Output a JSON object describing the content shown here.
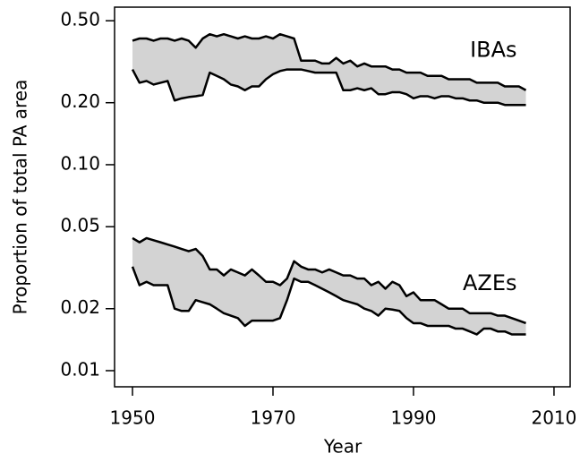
{
  "chart_data": {
    "type": "band",
    "x_label": "Year",
    "y_label": "Proportion of total PA area",
    "log_y": true,
    "xlim": [
      1947.45,
      2012.3
    ],
    "xticks": [
      1950,
      1970,
      1990,
      2010
    ],
    "ylim": [
      0.00835,
      0.582
    ],
    "yticks": [
      {
        "value": 0.5,
        "label": "0.50"
      },
      {
        "value": 0.2,
        "label": "0.20"
      },
      {
        "value": 0.1,
        "label": "0.10"
      },
      0.05,
      0.02,
      0.01
    ],
    "x": [
      1950,
      1951,
      1952,
      1953,
      1954,
      1955,
      1956,
      1957,
      1958,
      1959,
      1960,
      1961,
      1962,
      1963,
      1964,
      1965,
      1966,
      1967,
      1968,
      1969,
      1970,
      1971,
      1972,
      1973,
      1974,
      1975,
      1976,
      1977,
      1978,
      1979,
      1980,
      1981,
      1982,
      1983,
      1984,
      1985,
      1986,
      1987,
      1988,
      1989,
      1990,
      1991,
      1992,
      1993,
      1994,
      1995,
      1996,
      1997,
      1998,
      1999,
      2000,
      2001,
      2002,
      2003,
      2004,
      2005,
      2006
    ],
    "series": [
      {
        "name": "IBAs",
        "color": "#d3d3d3",
        "upper": [
          0.4,
          0.41,
          0.41,
          0.4,
          0.41,
          0.41,
          0.4,
          0.41,
          0.4,
          0.37,
          0.41,
          0.43,
          0.42,
          0.43,
          0.42,
          0.41,
          0.42,
          0.41,
          0.41,
          0.42,
          0.41,
          0.43,
          0.42,
          0.41,
          0.32,
          0.32,
          0.32,
          0.31,
          0.31,
          0.33,
          0.31,
          0.32,
          0.3,
          0.31,
          0.3,
          0.3,
          0.3,
          0.29,
          0.29,
          0.28,
          0.28,
          0.28,
          0.27,
          0.27,
          0.27,
          0.26,
          0.26,
          0.26,
          0.26,
          0.25,
          0.25,
          0.25,
          0.25,
          0.24,
          0.24,
          0.24,
          0.23
        ],
        "lower": [
          0.29,
          0.25,
          0.255,
          0.245,
          0.25,
          0.255,
          0.205,
          0.21,
          0.213,
          0.215,
          0.218,
          0.28,
          0.27,
          0.26,
          0.245,
          0.24,
          0.23,
          0.24,
          0.24,
          0.26,
          0.275,
          0.285,
          0.29,
          0.29,
          0.29,
          0.285,
          0.28,
          0.28,
          0.28,
          0.28,
          0.23,
          0.23,
          0.235,
          0.23,
          0.235,
          0.22,
          0.22,
          0.225,
          0.225,
          0.22,
          0.21,
          0.215,
          0.215,
          0.21,
          0.215,
          0.215,
          0.21,
          0.21,
          0.205,
          0.205,
          0.2,
          0.2,
          0.2,
          0.195,
          0.195,
          0.195,
          0.195
        ]
      },
      {
        "name": "AZEs",
        "color": "#d3d3d3",
        "upper": [
          0.044,
          0.042,
          0.044,
          0.043,
          0.042,
          0.041,
          0.04,
          0.039,
          0.038,
          0.039,
          0.036,
          0.031,
          0.031,
          0.029,
          0.031,
          0.03,
          0.029,
          0.031,
          0.029,
          0.027,
          0.027,
          0.026,
          0.028,
          0.034,
          0.032,
          0.031,
          0.031,
          0.03,
          0.031,
          0.03,
          0.029,
          0.029,
          0.028,
          0.028,
          0.026,
          0.027,
          0.025,
          0.027,
          0.026,
          0.023,
          0.024,
          0.022,
          0.022,
          0.022,
          0.021,
          0.02,
          0.02,
          0.02,
          0.019,
          0.019,
          0.019,
          0.019,
          0.0185,
          0.0185,
          0.018,
          0.0175,
          0.017
        ],
        "lower": [
          0.032,
          0.026,
          0.027,
          0.026,
          0.026,
          0.026,
          0.02,
          0.0195,
          0.0195,
          0.022,
          0.0215,
          0.021,
          0.02,
          0.019,
          0.0185,
          0.018,
          0.0165,
          0.0175,
          0.0175,
          0.0175,
          0.0175,
          0.018,
          0.022,
          0.028,
          0.027,
          0.027,
          0.026,
          0.025,
          0.024,
          0.023,
          0.022,
          0.0215,
          0.021,
          0.02,
          0.0195,
          0.0185,
          0.02,
          0.0198,
          0.0195,
          0.018,
          0.017,
          0.017,
          0.0165,
          0.0165,
          0.0165,
          0.0165,
          0.016,
          0.016,
          0.0155,
          0.015,
          0.016,
          0.016,
          0.0155,
          0.0155,
          0.015,
          0.015,
          0.015
        ]
      }
    ]
  }
}
